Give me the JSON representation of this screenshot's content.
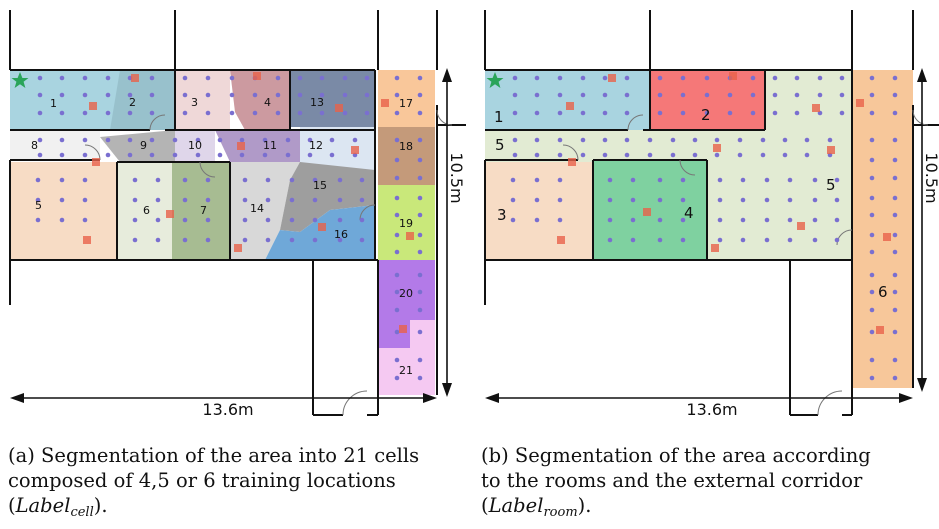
{
  "panel_a": {
    "cell_labels": [
      "1",
      "2",
      "3",
      "4",
      "5",
      "6",
      "7",
      "8",
      "9",
      "10",
      "11",
      "12",
      "13",
      "14",
      "15",
      "16",
      "17",
      "18",
      "19",
      "20",
      "21"
    ],
    "width_label": "13.6m",
    "height_label": "10.5m",
    "caption_line1": "(a) Segmentation of the area into 21 cells",
    "caption_line2": "composed of 4,5 or 6 training locations",
    "caption_line3_open": "(",
    "caption_var": "Label",
    "caption_sub": "cell",
    "caption_line3_close": ")."
  },
  "panel_b": {
    "room_labels": [
      "1",
      "2",
      "3",
      "4",
      "5",
      "5",
      "6"
    ],
    "width_label": "13.6m",
    "height_label": "10.5m",
    "caption_line1": "(b) Segmentation of the area according",
    "caption_line2": "to the rooms and the external corridor",
    "caption_line3_open": "(",
    "caption_var": "Label",
    "caption_sub": "room",
    "caption_line3_close": ")."
  },
  "colors": {
    "training_point": "#7a6fd0",
    "access_point": "#e8624a",
    "reference_star": "#2aa45a",
    "wall": "#111111"
  }
}
